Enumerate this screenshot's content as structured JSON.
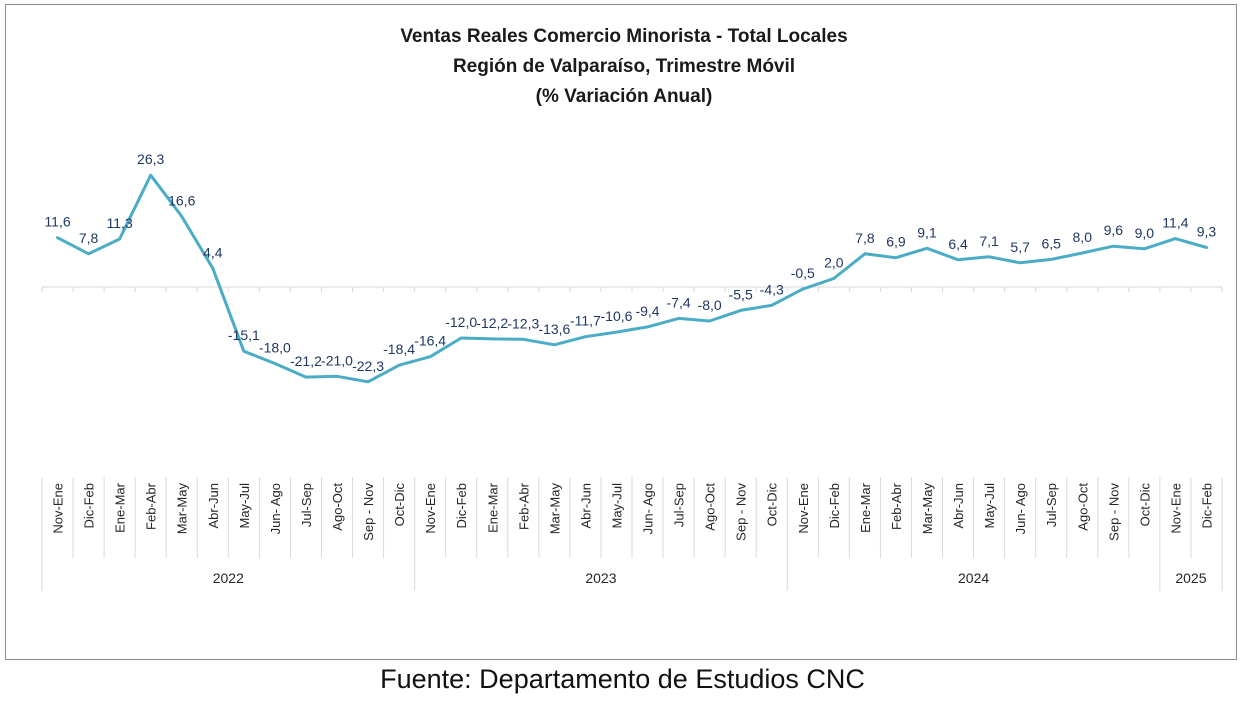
{
  "chart_data": {
    "type": "line",
    "title": [
      "Ventas Reales Comercio Minorista - Total Locales",
      "Región de Valparaíso, Trimestre Móvil",
      "(% Variación Anual)"
    ],
    "x": [
      "Nov-Ene",
      "Dic-Feb",
      "Ene-Mar",
      "Feb-Abr",
      "Mar-May",
      "Abr-Jun",
      "May-Jul",
      "Jun- Ago",
      "Jul-Sep",
      "Ago-Oct",
      "Sep - Nov",
      "Oct-Dic",
      "Nov-Ene",
      "Dic-Feb",
      "Ene-Mar",
      "Feb-Abr",
      "Mar-May",
      "Abr-Jun",
      "May-Jul",
      "Jun- Ago",
      "Jul-Sep",
      "Ago-Oct",
      "Sep - Nov",
      "Oct-Dic",
      "Nov-Ene",
      "Dic-Feb",
      "Ene-Mar",
      "Feb-Abr",
      "Mar-May",
      "Abr-Jun",
      "May-Jul",
      "Jun- Ago",
      "Jul-Sep",
      "Ago-Oct",
      "Sep - Nov",
      "Oct-Dic",
      "Nov-Ene",
      "Dic-Feb"
    ],
    "years": [
      {
        "label": "2022",
        "start": 0,
        "end": 11
      },
      {
        "label": "2023",
        "start": 12,
        "end": 23
      },
      {
        "label": "2024",
        "start": 24,
        "end": 35
      },
      {
        "label": "2025",
        "start": 36,
        "end": 37
      }
    ],
    "values": [
      11.6,
      7.8,
      11.3,
      26.3,
      16.6,
      4.4,
      -15.1,
      -18.0,
      -21.2,
      -21.0,
      -22.3,
      -18.4,
      -16.4,
      -12.0,
      -12.2,
      -12.3,
      -13.6,
      -11.7,
      -10.6,
      -9.4,
      -7.4,
      -8.0,
      -5.5,
      -4.3,
      -0.5,
      2.0,
      7.8,
      6.9,
      9.1,
      6.4,
      7.1,
      5.7,
      6.5,
      8.0,
      9.6,
      9.0,
      11.4,
      9.3
    ],
    "labels": [
      "11,6",
      "7,8",
      "11,3",
      "26,3",
      "16,6",
      "4,4",
      "-15,1",
      "-18,0",
      "-21,2",
      "-21,0",
      "-22,3",
      "-18,4",
      "-16,4",
      "-12,0",
      "-12,2",
      "-12,3",
      "-13,6",
      "-11,7",
      "-10,6",
      "-9,4",
      "-7,4",
      "-8,0",
      "-5,5",
      "-4,3",
      "-0,5",
      "2,0",
      "7,8",
      "6,9",
      "9,1",
      "6,4",
      "7,1",
      "5,7",
      "6,5",
      "8,0",
      "9,6",
      "9,0",
      "11,4",
      "9,3"
    ],
    "line_color": "#4bacc6",
    "label_color": "#1f3864",
    "grid": false,
    "legend": "none"
  },
  "source": "Fuente: Departamento de Estudios CNC"
}
